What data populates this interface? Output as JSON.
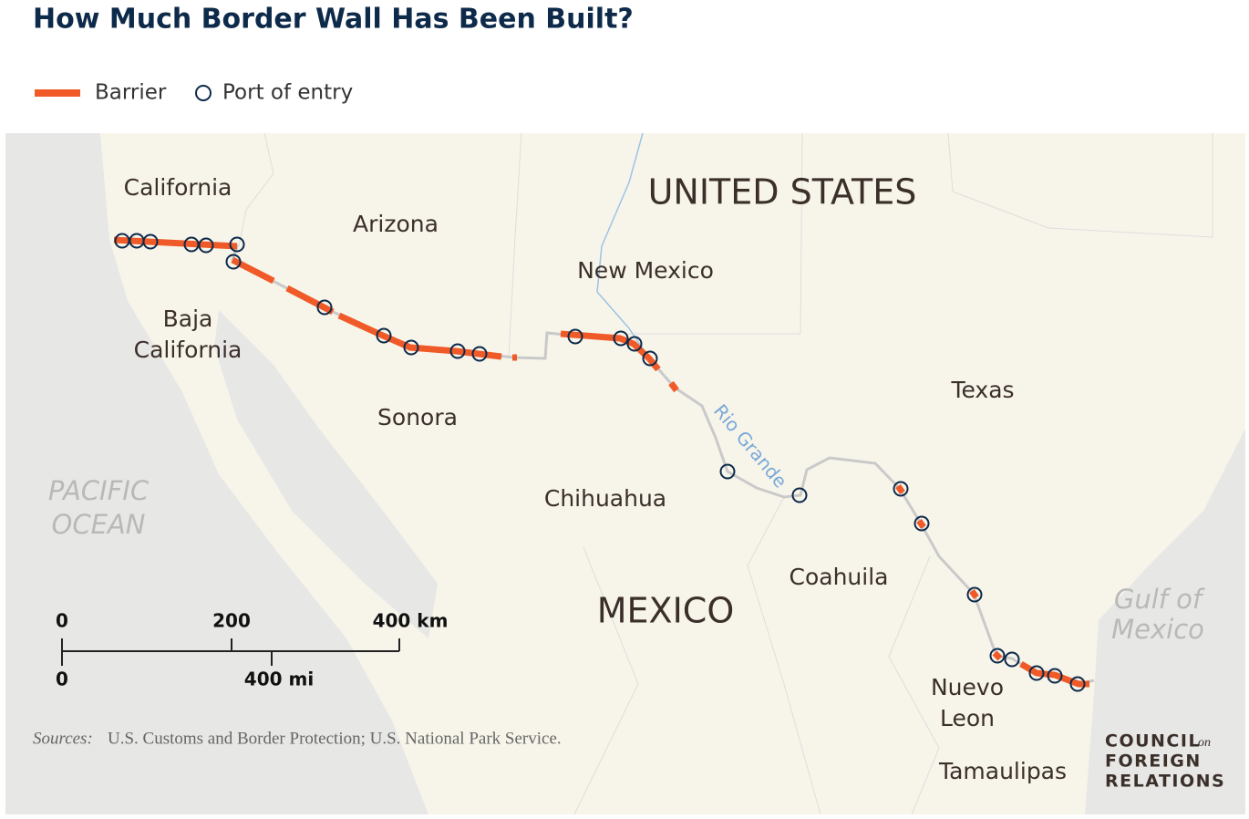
{
  "header": {
    "title": "How Much Border Wall Has Been Built?"
  },
  "legend": [
    "Barrier",
    "Port of entry"
  ],
  "map": {
    "countries": [
      "UNITED STATES",
      "MEXICO"
    ],
    "states": [
      "California",
      "Arizona",
      "New Mexico",
      "Texas"
    ],
    "mexican_states": [
      [
        "Baja",
        "California"
      ],
      [
        "Sonora"
      ],
      [
        "Chihuahua"
      ],
      [
        "Coahuila"
      ],
      [
        "Nuevo",
        "Leon"
      ],
      [
        "Tamaulipas"
      ]
    ],
    "waters": [
      [
        "PACIFIC",
        "OCEAN"
      ],
      [
        "Gulf of",
        "Mexico"
      ]
    ],
    "river": "Rio Grande"
  },
  "scale": {
    "km": [
      "0",
      "200",
      "400 km"
    ],
    "mi": [
      "0",
      "400 mi"
    ]
  },
  "footer": {
    "sources_label": "Sources:",
    "sources": "U.S. Customs and Border Protection; U.S. National Park Service.",
    "logo": {
      "first": "COUNCIL",
      "small": "on",
      "second": "FOREIGN",
      "third": "RELATIONS"
    }
  }
}
